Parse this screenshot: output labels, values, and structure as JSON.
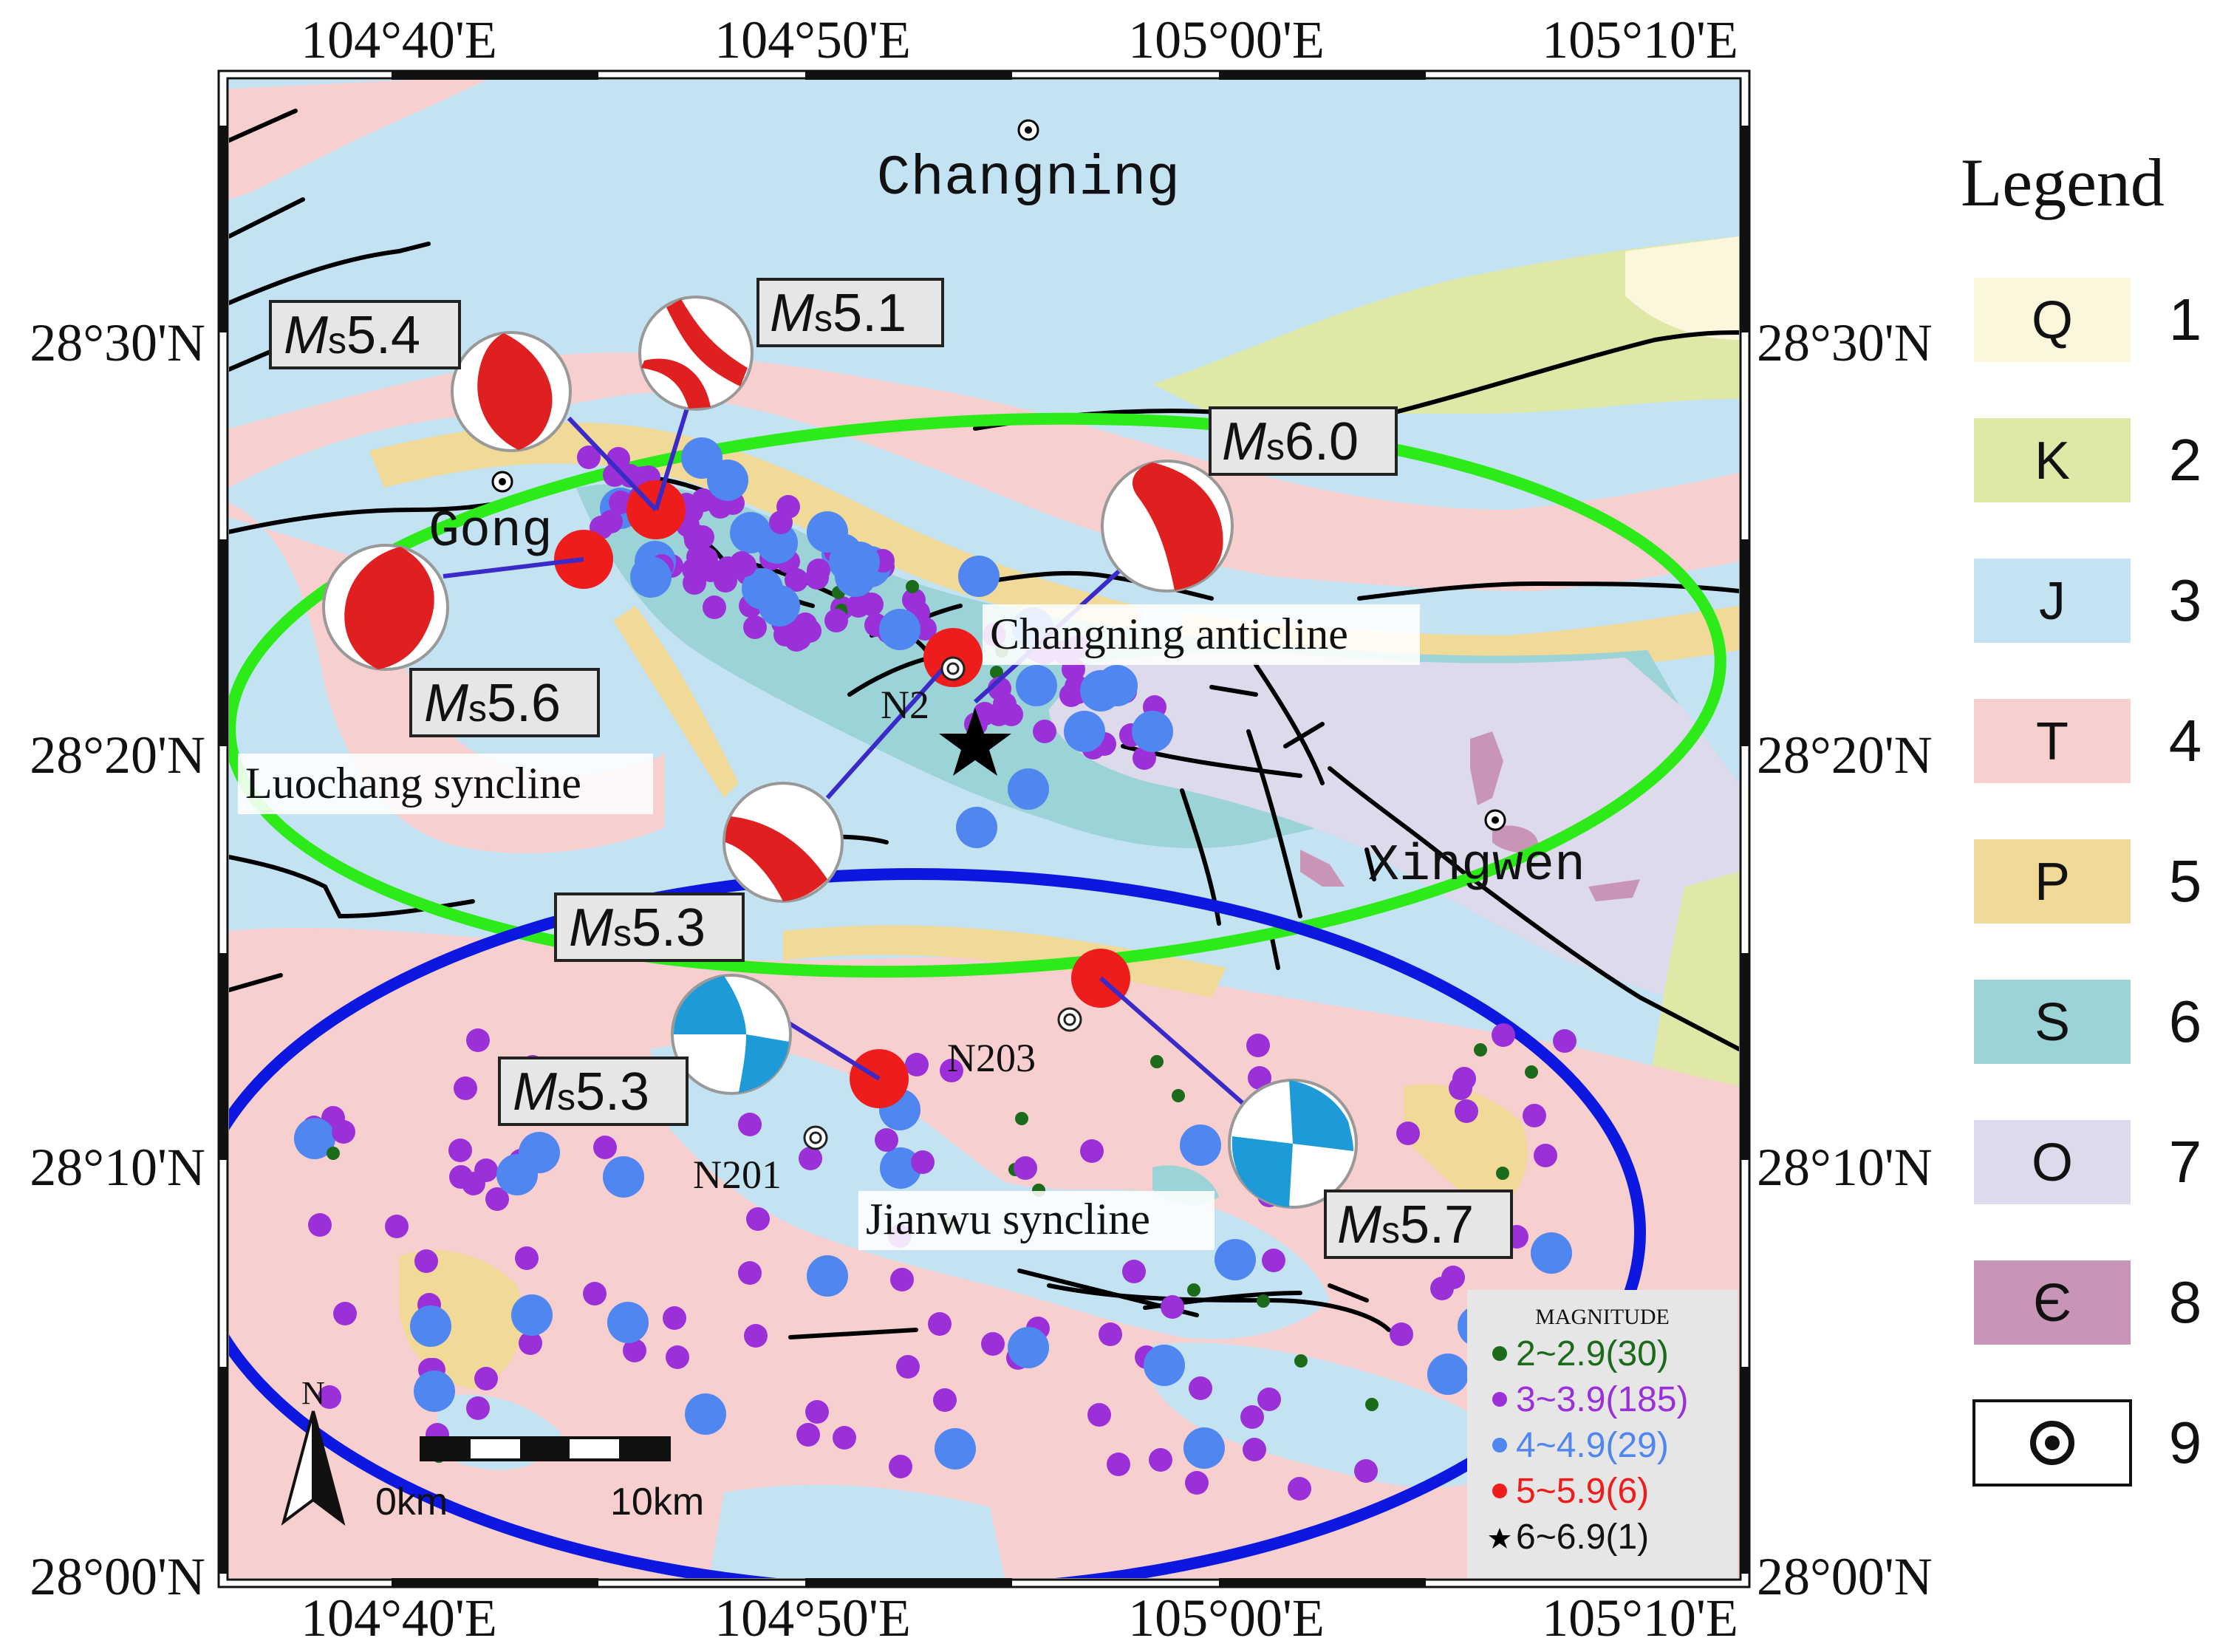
{
  "axes": {
    "x_ticks": [
      "104°40'E",
      "104°50'E",
      "105°00'E",
      "105°10'E"
    ],
    "y_ticks": [
      "28°30'N",
      "28°20'N",
      "28°10'N",
      "28°00'N"
    ]
  },
  "towns": [
    {
      "name": "Changning"
    },
    {
      "name": "Gong"
    },
    {
      "name": "Xingwen"
    }
  ],
  "structures": {
    "anticline": "Changning anticline",
    "luochang": "Luochang syncline",
    "jianwu": "Jianwu syncline"
  },
  "stations": [
    "N2",
    "N203",
    "N201"
  ],
  "mechanisms": [
    {
      "id": "m54",
      "magnitude": "5.4"
    },
    {
      "id": "m51",
      "magnitude": "5.1"
    },
    {
      "id": "m60",
      "magnitude": "6.0"
    },
    {
      "id": "m56",
      "magnitude": "5.6"
    },
    {
      "id": "m53a",
      "magnitude": "5.3"
    },
    {
      "id": "m53b",
      "magnitude": "5.3"
    },
    {
      "id": "m57",
      "magnitude": "5.7"
    }
  ],
  "mag_label": {
    "M": "M",
    "s": "s"
  },
  "scale_bar": {
    "start": "0km",
    "end": "10km"
  },
  "north_label": "N",
  "magnitude_legend": {
    "title": "MAGNITUDE",
    "entries": [
      {
        "label": "2~2.9(30)",
        "color": "#1b6b1b",
        "symbol": "dot"
      },
      {
        "label": "3~3.9(185)",
        "color": "#9b30d9",
        "symbol": "dot"
      },
      {
        "label": "4~4.9(29)",
        "color": "#4f86f0",
        "symbol": "dot"
      },
      {
        "label": "5~5.9(6)",
        "color": "#ef1c1c",
        "symbol": "dot"
      },
      {
        "label": "6~6.9(1)",
        "color": "#000000",
        "symbol": "star"
      }
    ]
  },
  "legend": {
    "title": "Legend",
    "items": [
      {
        "code": "Q",
        "num": "1",
        "color": "#fbf7dd"
      },
      {
        "code": "K",
        "num": "2",
        "color": "#e0e8a8"
      },
      {
        "code": "J",
        "num": "3",
        "color": "#c3e3f3"
      },
      {
        "code": "T",
        "num": "4",
        "color": "#f7cfcf"
      },
      {
        "code": "P",
        "num": "5",
        "color": "#f1d998"
      },
      {
        "code": "S",
        "num": "6",
        "color": "#9bd3d6"
      },
      {
        "code": "O",
        "num": "7",
        "color": "#dcdaeb"
      },
      {
        "code": "Є",
        "num": "8",
        "color": "#c995b6"
      },
      {
        "code": "",
        "num": "9",
        "color": "#ffffff",
        "icon": "concentric-circle-town-icon"
      }
    ]
  },
  "colors": {
    "green_ellipse": "#2dea19",
    "blue_ellipse": "#0c17e0",
    "fault": "#000000",
    "beachball_red": "#e02020",
    "beachball_blue": "#1e9ad8",
    "connector": "#3a2ac8"
  }
}
